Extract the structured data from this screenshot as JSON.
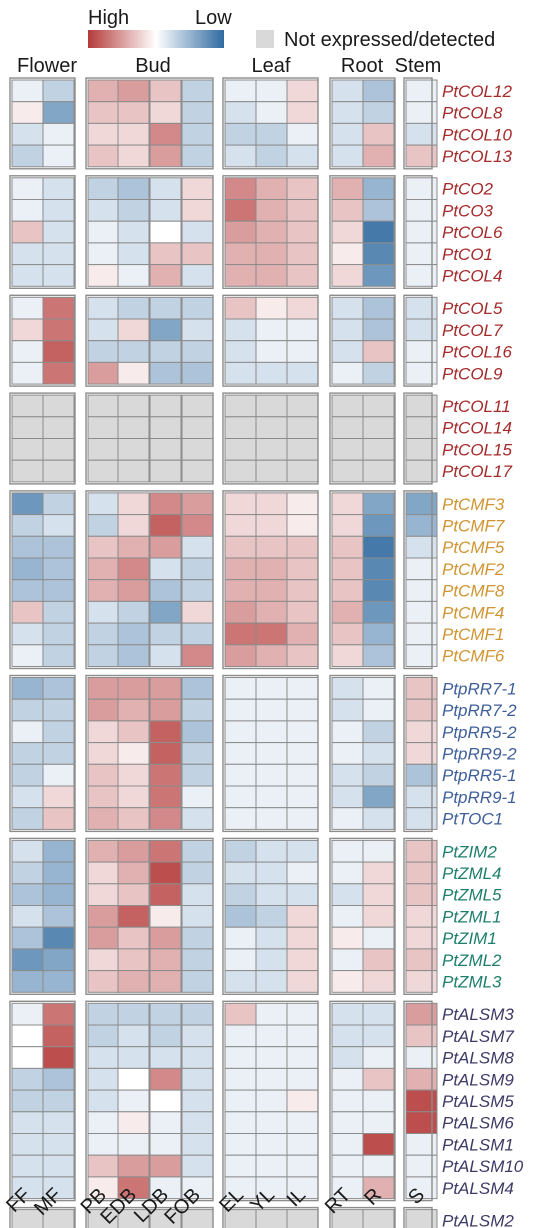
{
  "chart_data": {
    "type": "heatmap",
    "legend": {
      "high_label": "High",
      "low_label": "Low",
      "na_label": "Not expressed/detected"
    },
    "tissues": [
      "Flower",
      "Bud",
      "Leaf",
      "Root",
      "Stem"
    ],
    "columns": [
      "FF",
      "MF",
      "PB",
      "EDB",
      "LDB",
      "FOB",
      "EL",
      "YL",
      "IL",
      "RT",
      "R",
      "S"
    ],
    "column_groups": [
      {
        "tissue": "Flower",
        "columns": [
          "FF",
          "MF"
        ]
      },
      {
        "tissue": "Bud",
        "columns": [
          "PB",
          "EDB",
          "LDB",
          "FOB"
        ]
      },
      {
        "tissue": "Leaf",
        "columns": [
          "EL",
          "YL",
          "IL"
        ]
      },
      {
        "tissue": "Root",
        "columns": [
          "RT",
          "R"
        ]
      },
      {
        "tissue": "Stem",
        "columns": [
          "S"
        ]
      }
    ],
    "value_scale": "relative expression, 1 = high (red), 0 = mid (white), -1 = low (blue), null = not expressed/detected",
    "colors": {
      "high": "#b53a3a",
      "mid": "#ffffff",
      "low": "#2f6aa0",
      "na": "#d9d9d9"
    },
    "groups": [
      {
        "color": "#a52a2a",
        "rows": [
          {
            "gene": "PtCOL12",
            "values": [
              -0.1,
              -0.3,
              0.4,
              0.5,
              0.3,
              -0.3,
              -0.1,
              -0.1,
              0.2,
              -0.2,
              -0.4,
              -0.1
            ]
          },
          {
            "gene": "PtCOL8",
            "values": [
              0.1,
              -0.6,
              0.3,
              0.3,
              0.2,
              -0.3,
              -0.2,
              -0.1,
              0.2,
              -0.2,
              -0.3,
              -0.1
            ]
          },
          {
            "gene": "PtCOL10",
            "values": [
              -0.2,
              -0.1,
              0.2,
              0.2,
              0.6,
              -0.3,
              -0.3,
              -0.3,
              -0.1,
              -0.2,
              0.3,
              -0.2
            ]
          },
          {
            "gene": "PtCOL13",
            "values": [
              -0.3,
              -0.1,
              0.3,
              0.2,
              0.5,
              -0.3,
              -0.2,
              -0.3,
              -0.2,
              -0.2,
              0.4,
              0.3
            ]
          }
        ]
      },
      {
        "color": "#a52a2a",
        "rows": [
          {
            "gene": "PtCO2",
            "values": [
              -0.1,
              -0.2,
              -0.3,
              -0.4,
              -0.2,
              0.2,
              0.6,
              0.4,
              0.3,
              0.4,
              -0.5,
              -0.1
            ]
          },
          {
            "gene": "PtCO3",
            "values": [
              -0.1,
              -0.2,
              -0.2,
              -0.3,
              -0.2,
              0.2,
              0.7,
              0.4,
              0.3,
              0.3,
              -0.4,
              -0.1
            ]
          },
          {
            "gene": "PtCOL6",
            "values": [
              0.3,
              -0.2,
              -0.1,
              -0.2,
              0.0,
              -0.2,
              0.5,
              0.4,
              0.3,
              0.2,
              -0.9,
              -0.1
            ]
          },
          {
            "gene": "PtCO1",
            "values": [
              -0.2,
              -0.2,
              -0.1,
              -0.2,
              0.3,
              0.3,
              0.4,
              0.4,
              0.3,
              0.1,
              -0.8,
              -0.1
            ]
          },
          {
            "gene": "PtCOL4",
            "values": [
              -0.2,
              -0.2,
              0.1,
              -0.1,
              0.4,
              -0.2,
              0.4,
              0.4,
              0.3,
              0.2,
              -0.7,
              -0.1
            ]
          }
        ]
      },
      {
        "color": "#a52a2a",
        "rows": [
          {
            "gene": "PtCOL5",
            "values": [
              -0.1,
              0.7,
              -0.2,
              -0.3,
              -0.3,
              -0.3,
              0.3,
              0.1,
              0.2,
              -0.2,
              -0.4,
              -0.2
            ]
          },
          {
            "gene": "PtCOL7",
            "values": [
              0.2,
              0.7,
              -0.2,
              0.2,
              -0.6,
              -0.2,
              -0.2,
              -0.1,
              -0.1,
              -0.2,
              -0.4,
              -0.2
            ]
          },
          {
            "gene": "PtCOL16",
            "values": [
              -0.1,
              0.8,
              -0.3,
              -0.3,
              -0.3,
              -0.3,
              -0.2,
              -0.1,
              -0.1,
              -0.2,
              0.3,
              -0.1
            ]
          },
          {
            "gene": "PtCOL9",
            "values": [
              -0.1,
              0.7,
              0.5,
              0.1,
              -0.4,
              -0.4,
              -0.2,
              -0.2,
              -0.2,
              -0.1,
              -0.3,
              -0.1
            ]
          }
        ]
      },
      {
        "color": "#a52a2a",
        "rows": [
          {
            "gene": "PtCOL11",
            "values": [
              null,
              null,
              null,
              null,
              null,
              null,
              null,
              null,
              null,
              null,
              null,
              null
            ]
          },
          {
            "gene": "PtCOL14",
            "values": [
              null,
              null,
              null,
              null,
              null,
              null,
              null,
              null,
              null,
              null,
              null,
              null
            ]
          },
          {
            "gene": "PtCOL15",
            "values": [
              null,
              null,
              null,
              null,
              null,
              null,
              null,
              null,
              null,
              null,
              null,
              null
            ]
          },
          {
            "gene": "PtCOL17",
            "values": [
              null,
              null,
              null,
              null,
              null,
              null,
              null,
              null,
              null,
              null,
              null,
              null
            ]
          }
        ]
      },
      {
        "color": "#d09532",
        "rows": [
          {
            "gene": "PtCMF3",
            "values": [
              -0.7,
              -0.3,
              -0.2,
              0.2,
              0.6,
              0.5,
              0.2,
              0.2,
              0.1,
              0.2,
              -0.6,
              -0.6
            ]
          },
          {
            "gene": "PtCMF7",
            "values": [
              -0.3,
              -0.2,
              -0.3,
              0.2,
              0.8,
              0.6,
              0.2,
              0.2,
              0.1,
              0.2,
              -0.7,
              -0.5
            ]
          },
          {
            "gene": "PtCMF5",
            "values": [
              -0.4,
              -0.4,
              0.3,
              0.4,
              0.5,
              -0.2,
              0.3,
              0.3,
              0.3,
              0.3,
              -0.9,
              -0.2
            ]
          },
          {
            "gene": "PtCMF2",
            "values": [
              -0.5,
              -0.4,
              0.4,
              0.6,
              -0.2,
              -0.3,
              0.4,
              0.4,
              0.3,
              0.3,
              -0.8,
              -0.1
            ]
          },
          {
            "gene": "PtCMF8",
            "values": [
              -0.4,
              -0.4,
              0.4,
              0.5,
              -0.4,
              -0.3,
              0.4,
              0.4,
              0.3,
              0.3,
              -0.8,
              -0.1
            ]
          },
          {
            "gene": "PtCMF4",
            "values": [
              0.3,
              -0.3,
              -0.2,
              -0.3,
              -0.6,
              0.2,
              0.5,
              0.4,
              0.3,
              0.4,
              -0.7,
              -0.1
            ]
          },
          {
            "gene": "PtCMF1",
            "values": [
              -0.2,
              -0.3,
              -0.3,
              -0.4,
              -0.3,
              -0.3,
              0.7,
              0.7,
              0.4,
              0.3,
              -0.5,
              -0.1
            ]
          },
          {
            "gene": "PtCMF6",
            "values": [
              -0.1,
              -0.3,
              -0.3,
              -0.4,
              -0.2,
              0.6,
              0.5,
              0.4,
              0.3,
              0.2,
              -0.4,
              -0.1
            ]
          }
        ]
      },
      {
        "color": "#3e5f9a",
        "rows": [
          {
            "gene": "PtpRR7-1",
            "values": [
              -0.5,
              -0.4,
              0.5,
              0.5,
              0.5,
              -0.4,
              -0.1,
              -0.1,
              -0.1,
              -0.2,
              -0.1,
              0.3
            ]
          },
          {
            "gene": "PtpRR7-2",
            "values": [
              -0.3,
              -0.3,
              0.5,
              0.4,
              0.5,
              -0.3,
              -0.1,
              -0.1,
              -0.1,
              -0.2,
              -0.1,
              0.3
            ]
          },
          {
            "gene": "PtpRR5-2",
            "values": [
              -0.1,
              -0.3,
              0.2,
              0.3,
              0.8,
              -0.4,
              -0.1,
              -0.1,
              -0.1,
              -0.1,
              -0.3,
              0.2
            ]
          },
          {
            "gene": "PtpRR9-2",
            "values": [
              -0.3,
              -0.3,
              0.2,
              0.1,
              0.8,
              -0.3,
              -0.1,
              -0.1,
              -0.1,
              -0.1,
              -0.2,
              0.2
            ]
          },
          {
            "gene": "PtpRR5-1",
            "values": [
              -0.3,
              -0.1,
              0.3,
              0.2,
              0.7,
              -0.3,
              -0.1,
              -0.1,
              -0.1,
              -0.2,
              -0.3,
              -0.4
            ]
          },
          {
            "gene": "PtpRR9-1",
            "values": [
              -0.2,
              0.2,
              0.3,
              0.2,
              0.7,
              -0.1,
              -0.1,
              -0.1,
              -0.1,
              -0.2,
              -0.6,
              -0.2
            ]
          },
          {
            "gene": "PtTOC1",
            "values": [
              -0.3,
              0.3,
              0.4,
              0.3,
              0.6,
              -0.2,
              -0.1,
              -0.1,
              -0.1,
              -0.1,
              -0.2,
              -0.2
            ]
          }
        ]
      },
      {
        "color": "#1e7f6d",
        "rows": [
          {
            "gene": "PtZIM2",
            "values": [
              -0.2,
              -0.5,
              0.4,
              0.5,
              0.7,
              -0.3,
              -0.3,
              -0.2,
              -0.2,
              -0.1,
              -0.1,
              0.3
            ]
          },
          {
            "gene": "PtZML4",
            "values": [
              -0.3,
              -0.5,
              0.2,
              0.4,
              0.9,
              -0.3,
              -0.2,
              -0.2,
              -0.1,
              -0.1,
              0.2,
              0.3
            ]
          },
          {
            "gene": "PtZML5",
            "values": [
              -0.4,
              -0.5,
              0.2,
              0.3,
              0.8,
              -0.2,
              -0.3,
              -0.2,
              -0.2,
              -0.2,
              0.2,
              0.3
            ]
          },
          {
            "gene": "PtZML1",
            "values": [
              -0.2,
              -0.4,
              0.5,
              0.8,
              0.1,
              -0.2,
              -0.4,
              -0.3,
              0.2,
              -0.1,
              0.2,
              0.2
            ]
          },
          {
            "gene": "PtZIM1",
            "values": [
              -0.4,
              -0.8,
              0.5,
              0.3,
              0.5,
              -0.3,
              -0.1,
              -0.2,
              0.2,
              0.1,
              -0.1,
              0.2
            ]
          },
          {
            "gene": "PtZML2",
            "values": [
              -0.7,
              -0.6,
              0.2,
              0.3,
              0.4,
              -0.3,
              -0.1,
              -0.2,
              0.2,
              -0.1,
              0.3,
              0.3
            ]
          },
          {
            "gene": "PtZML3",
            "values": [
              -0.5,
              -0.5,
              0.3,
              0.4,
              0.4,
              -0.3,
              -0.2,
              -0.2,
              0.2,
              0.1,
              0.2,
              0.2
            ]
          }
        ]
      },
      {
        "color": "#3e3a66",
        "rows": [
          {
            "gene": "PtALSM3",
            "values": [
              -0.1,
              0.7,
              -0.3,
              -0.3,
              -0.3,
              -0.3,
              0.3,
              -0.1,
              -0.1,
              -0.2,
              -0.2,
              0.5
            ]
          },
          {
            "gene": "PtALSM7",
            "values": [
              0.0,
              0.8,
              -0.3,
              -0.2,
              -0.3,
              -0.2,
              -0.1,
              -0.1,
              -0.1,
              -0.2,
              -0.2,
              0.3
            ]
          },
          {
            "gene": "PtALSM8",
            "values": [
              0.0,
              0.9,
              -0.2,
              -0.2,
              -0.2,
              -0.2,
              -0.1,
              -0.1,
              -0.1,
              -0.2,
              -0.1,
              -0.1
            ]
          },
          {
            "gene": "PtALSM9",
            "values": [
              -0.3,
              -0.4,
              -0.2,
              0.0,
              0.6,
              -0.2,
              -0.1,
              -0.1,
              -0.1,
              -0.1,
              0.3,
              0.4
            ]
          },
          {
            "gene": "PtALSM5",
            "values": [
              -0.3,
              -0.3,
              -0.2,
              -0.1,
              0.0,
              -0.2,
              -0.1,
              -0.1,
              0.1,
              -0.1,
              -0.1,
              0.9
            ]
          },
          {
            "gene": "PtALSM6",
            "values": [
              -0.2,
              -0.2,
              -0.1,
              0.1,
              -0.1,
              -0.2,
              -0.1,
              -0.1,
              -0.1,
              -0.1,
              -0.1,
              0.9
            ]
          },
          {
            "gene": "PtALSM1",
            "values": [
              -0.2,
              -0.2,
              -0.1,
              -0.1,
              -0.1,
              -0.2,
              -0.1,
              -0.1,
              -0.1,
              -0.1,
              0.9,
              -0.1
            ]
          },
          {
            "gene": "PtALSM10",
            "values": [
              -0.2,
              -0.2,
              0.3,
              0.5,
              0.5,
              -0.2,
              -0.1,
              -0.1,
              -0.1,
              -0.1,
              -0.1,
              -0.1
            ]
          },
          {
            "gene": "PtALSM4",
            "values": [
              -0.2,
              -0.2,
              0.1,
              0.7,
              -0.1,
              -0.1,
              -0.1,
              -0.1,
              -0.1,
              -0.1,
              0.4,
              -0.1
            ]
          }
        ]
      },
      {
        "color": "#3e3a66",
        "rows": [
          {
            "gene": "PtALSM2",
            "values": [
              null,
              null,
              null,
              null,
              null,
              null,
              null,
              null,
              null,
              null,
              null,
              null
            ]
          }
        ]
      }
    ]
  }
}
